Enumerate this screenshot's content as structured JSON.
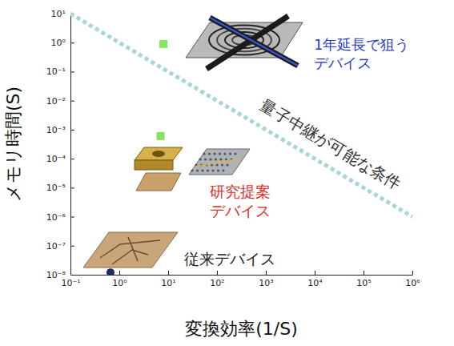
{
  "chart_data": {
    "type": "scatter",
    "x_label": "変換効率(1/S)",
    "y_label": "メモリ時間(S)",
    "log": true,
    "grid": false,
    "xlim": [
      0.1,
      1000000
    ],
    "ylim": [
      1e-08,
      10
    ],
    "xticks": [
      {
        "value": 0.1,
        "label": "10⁻¹"
      },
      {
        "value": 1,
        "label": "10⁰"
      },
      {
        "value": 10,
        "label": "10¹"
      },
      {
        "value": 100,
        "label": "10²"
      },
      {
        "value": 1000,
        "label": "10³"
      },
      {
        "value": 10000,
        "label": "10⁴"
      },
      {
        "value": 100000,
        "label": "10⁵"
      },
      {
        "value": 1000000,
        "label": "10⁶"
      }
    ],
    "yticks": [
      {
        "value": 1e-08,
        "label": "10⁻⁸"
      },
      {
        "value": 1e-07,
        "label": "10⁻⁷"
      },
      {
        "value": 1e-06,
        "label": "10⁻⁶"
      },
      {
        "value": 1e-05,
        "label": "10⁻⁵"
      },
      {
        "value": 0.0001,
        "label": "10⁻⁴"
      },
      {
        "value": 0.001,
        "label": "10⁻³"
      },
      {
        "value": 0.01,
        "label": "10⁻²"
      },
      {
        "value": 0.1,
        "label": "10⁻¹"
      },
      {
        "value": 1,
        "label": "10⁰"
      },
      {
        "value": 10,
        "label": "10¹"
      }
    ],
    "series": [
      {
        "name": "量子中継が可能な条件",
        "type": "line",
        "line_style": "dashed",
        "color": "#a8d5da",
        "x": [
          0.1,
          1000000
        ],
        "values": [
          10,
          1e-06
        ]
      },
      {
        "type": "scatter",
        "marker": "square",
        "color": "#86e45f",
        "x": [
          8,
          7
        ],
        "values": [
          0.9,
          0.0006
        ]
      },
      {
        "type": "scatter",
        "marker": "circle",
        "color": "#1c2a6e",
        "x": [
          0.66
        ],
        "values": [
          1.2e-08
        ]
      }
    ],
    "annotations": [
      {
        "text": "1年延長で狙う\nデバイス",
        "color": "#2a3cc4"
      },
      {
        "text": "研究提案\nデバイス",
        "color": "#e0302a"
      },
      {
        "text": "従来デバイス",
        "color": "#222222"
      }
    ]
  }
}
